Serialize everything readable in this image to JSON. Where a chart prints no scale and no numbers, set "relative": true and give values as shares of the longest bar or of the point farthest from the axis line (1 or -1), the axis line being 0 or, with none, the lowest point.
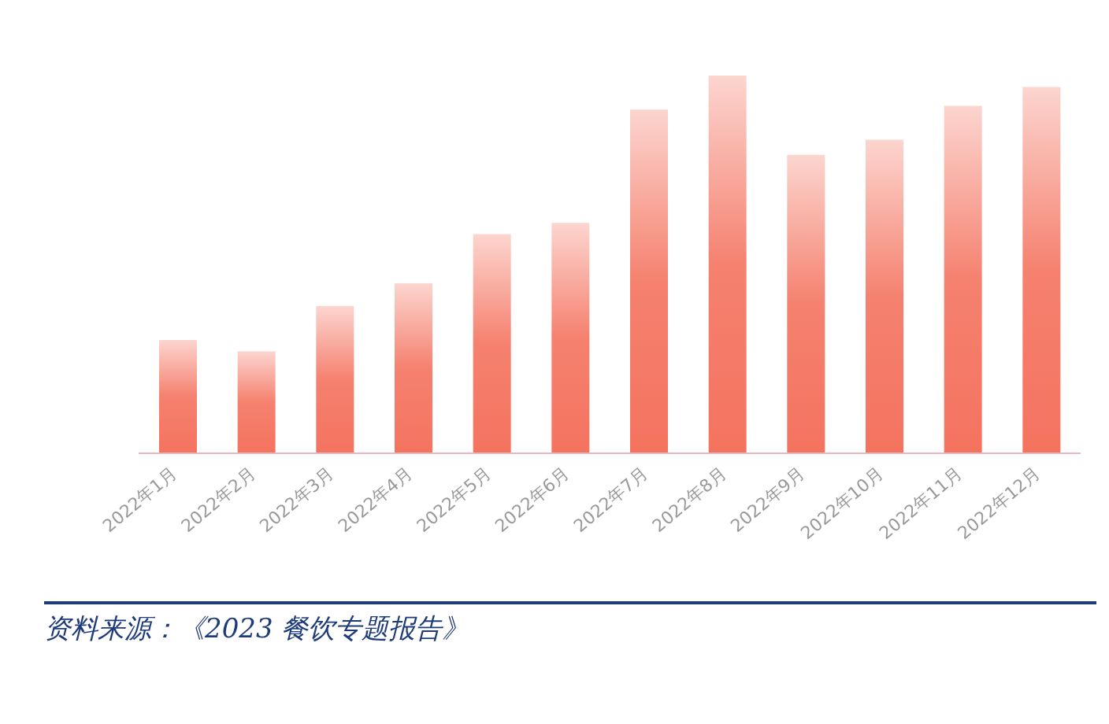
{
  "chart_data": {
    "type": "bar",
    "relative": true,
    "categories": [
      "2022年1月",
      "2022年2月",
      "2022年3月",
      "2022年4月",
      "2022年5月",
      "2022年6月",
      "2022年7月",
      "2022年8月",
      "2022年9月",
      "2022年10月",
      "2022年11月",
      "2022年12月"
    ],
    "values": [
      0.3,
      0.27,
      0.39,
      0.45,
      0.58,
      0.61,
      0.91,
      1,
      0.79,
      0.83,
      0.92,
      0.97
    ],
    "color": "#f4735f",
    "grid": false,
    "legend": false,
    "annotations": [
      "资料来源：《2023 餐饮专题报告》"
    ]
  }
}
